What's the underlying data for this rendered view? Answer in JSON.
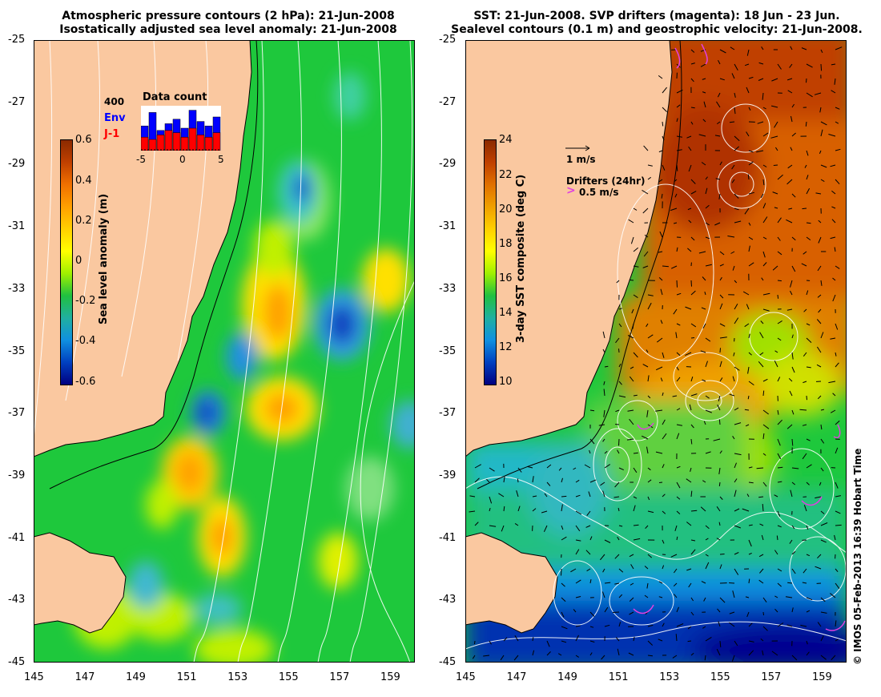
{
  "left_panel": {
    "title_line1": "Atmospheric pressure contours (2 hPa): 21-Jun-2008",
    "title_line2": "Isostatically adjusted sea level anomaly: 21-Jun-2008",
    "colorbar": {
      "label": "Sea level anomaly (m)",
      "ticks": [
        "0.6",
        "0.4",
        "0.2",
        "0",
        "-0.2",
        "-0.4",
        "-0.6"
      ]
    },
    "inset": {
      "title": "Data count",
      "y_label": "400",
      "legend": [
        {
          "name": "Env",
          "color": "#0000ff"
        },
        {
          "name": "J-1",
          "color": "#ff0000"
        }
      ],
      "x_ticks": [
        "-5",
        "0",
        "5"
      ],
      "env_fraction": [
        0.55,
        0.85,
        0.45,
        0.6,
        0.7,
        0.5,
        0.9,
        0.65,
        0.55,
        0.75
      ],
      "j1_fraction": [
        0.3,
        0.25,
        0.35,
        0.45,
        0.4,
        0.3,
        0.5,
        0.35,
        0.3,
        0.4
      ]
    }
  },
  "right_panel": {
    "title_line1": "SST: 21-Jun-2008. SVP drifters (magenta): 18 Jun - 23 Jun.",
    "title_line2": "Sealevel contours (0.1 m) and geostrophic velocity: 21-Jun-2008.",
    "colorbar": {
      "label": "3-day SST composite (deg C)",
      "ticks": [
        "24",
        "22",
        "20",
        "18",
        "16",
        "14",
        "12",
        "10"
      ]
    },
    "velocity_key": "1 m/s",
    "drifters_label": "Drifters (24hr)",
    "drifters_key": "0.5 m/s"
  },
  "axes": {
    "lat_ticks": [
      "-25",
      "-27",
      "-29",
      "-31",
      "-33",
      "-35",
      "-37",
      "-39",
      "-41",
      "-43",
      "-45"
    ],
    "lon_ticks": [
      "145",
      "147",
      "149",
      "151",
      "153",
      "155",
      "157",
      "159"
    ]
  },
  "colors": {
    "land": "#fac8a0",
    "ocean_green": "#1ec83c",
    "contour": "#ffffff",
    "drifter": "#e040e0"
  },
  "copyright": "© IMOS 05-Feb-2013 16:39 Hobart Time"
}
